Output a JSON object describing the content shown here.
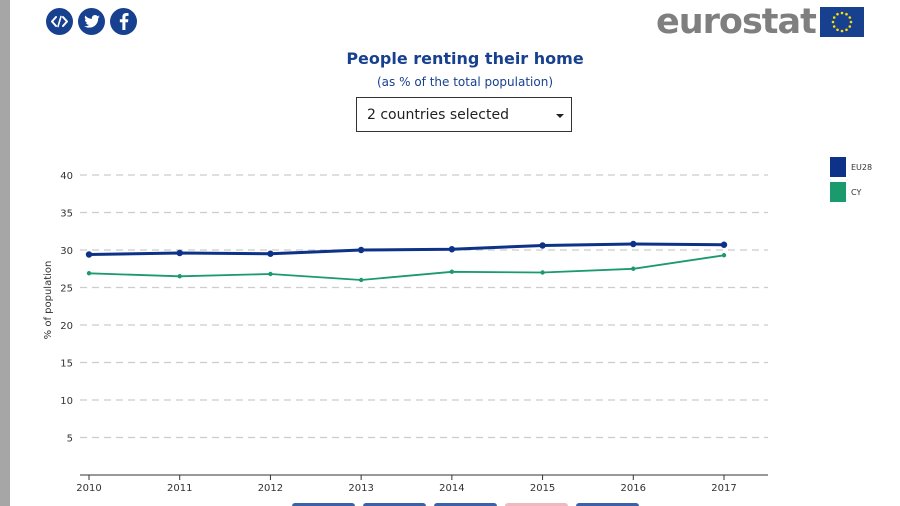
{
  "header": {
    "share_icons": [
      {
        "icon": "embed-code-icon"
      },
      {
        "icon": "twitter-icon"
      },
      {
        "icon": "facebook-icon"
      }
    ],
    "logo_text": "eurostat",
    "logo_icon": "eu-flag-icon"
  },
  "title": "People renting their home",
  "subtitle": "(as % of the total population)",
  "selector": {
    "value": "2 countries selected",
    "icon": "caret-down-icon"
  },
  "colors": {
    "brand": "#17408f",
    "eu28": "#0d3288",
    "cy": "#1b9a6e",
    "grid": "#cccccc"
  },
  "chart_data": {
    "type": "line",
    "x": [
      2010,
      2011,
      2012,
      2013,
      2014,
      2015,
      2016,
      2017
    ],
    "series": [
      {
        "name": "EU28",
        "values": [
          29.4,
          29.6,
          29.5,
          30.0,
          30.1,
          30.6,
          30.8,
          30.7
        ]
      },
      {
        "name": "CY",
        "values": [
          26.9,
          26.5,
          26.8,
          26.0,
          27.1,
          27.0,
          27.5,
          29.3
        ]
      }
    ],
    "title": "People renting their home",
    "subtitle": "(as % of the total population)",
    "xlabel": "",
    "ylabel": "% of population",
    "ylim": [
      0,
      40
    ],
    "yticks": [
      5,
      10,
      15,
      20,
      25,
      30,
      35,
      40
    ],
    "grid": true,
    "legend": "right"
  },
  "bottom_tabs": [
    {},
    {},
    {},
    {
      "pink": true
    },
    {}
  ]
}
